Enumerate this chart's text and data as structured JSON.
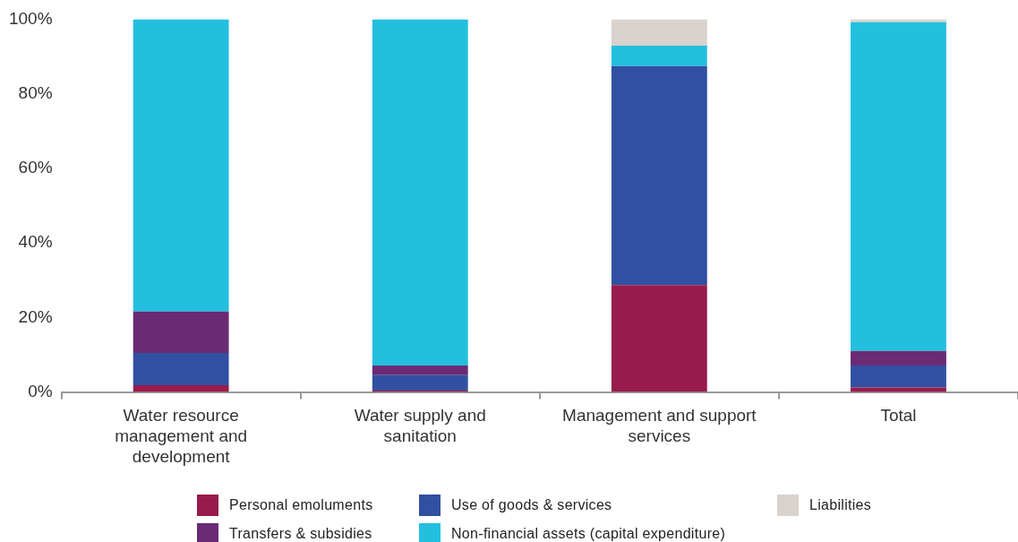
{
  "chart_data": {
    "type": "bar",
    "stacked": true,
    "categories": [
      "Water resource management and development",
      "Water supply and sanitation",
      "Management and support services",
      "Total"
    ],
    "series": [
      {
        "name": "Personal emoluments",
        "color": "#981b4b",
        "values": [
          1.8,
          0.4,
          28.7,
          1.2
        ]
      },
      {
        "name": "Use of goods & services",
        "color": "#3250a1",
        "values": [
          8.7,
          4.1,
          58.7,
          5.9
        ]
      },
      {
        "name": "Transfers & subsidies",
        "color": "#6a2a74",
        "values": [
          11.1,
          2.6,
          0,
          3.9
        ]
      },
      {
        "name": "Non-financial assets (capital expenditure)",
        "color": "#23bfdf",
        "values": [
          78.4,
          92.9,
          5.5,
          88.2
        ]
      },
      {
        "name": "Liabilities",
        "color": "#dad2cc",
        "values": [
          0,
          0,
          7.1,
          0.8
        ]
      }
    ],
    "ylim": [
      0,
      100
    ],
    "yticks": [
      {
        "value": 0,
        "label": "0%"
      },
      {
        "value": 20,
        "label": "20%"
      },
      {
        "value": 40,
        "label": "40%"
      },
      {
        "value": 60,
        "label": "60%"
      },
      {
        "value": 80,
        "label": "80%"
      },
      {
        "value": 100,
        "label": "100%"
      }
    ],
    "grid": false,
    "legend": "bottom"
  }
}
